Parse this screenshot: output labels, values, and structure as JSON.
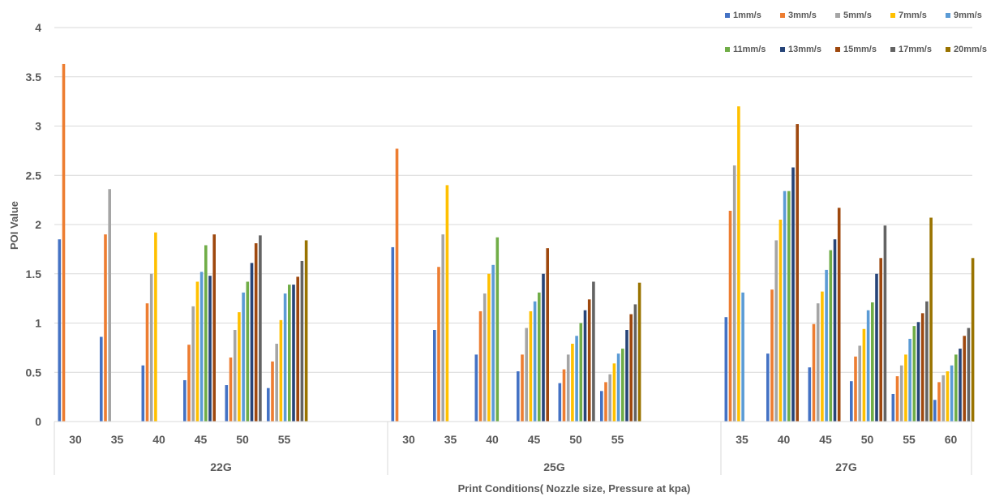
{
  "chart_data": {
    "type": "bar",
    "xlabel": "Print Conditions( Nozzle size, Pressure at kpa)",
    "ylabel": "POI Value",
    "ylim": [
      0,
      4
    ],
    "yticks": [
      "0",
      "0.5",
      "1",
      "1.5",
      "2",
      "2.5",
      "3",
      "3.5",
      "4"
    ],
    "grid": true,
    "legend_position": "top-right",
    "groups": [
      {
        "name": "22G",
        "categories": [
          "30",
          "35",
          "40",
          "45",
          "50",
          "55"
        ]
      },
      {
        "name": "25G",
        "categories": [
          "30",
          "35",
          "40",
          "45",
          "50",
          "55"
        ]
      },
      {
        "name": "27G",
        "categories": [
          "35",
          "40",
          "45",
          "50",
          "55",
          "60"
        ]
      }
    ],
    "series": [
      {
        "name": "1mm/s",
        "color": "#4472C4",
        "values": [
          1.85,
          0.86,
          0.57,
          0.42,
          0.37,
          0.34,
          1.77,
          0.93,
          0.68,
          0.51,
          0.39,
          0.31,
          1.06,
          0.69,
          0.55,
          0.41,
          0.28,
          0.22
        ]
      },
      {
        "name": "3mm/s",
        "color": "#ED7D31",
        "values": [
          3.63,
          1.9,
          1.2,
          0.78,
          0.65,
          0.61,
          2.77,
          1.57,
          1.12,
          0.68,
          0.53,
          0.4,
          2.14,
          1.34,
          0.99,
          0.66,
          0.46,
          0.4
        ]
      },
      {
        "name": "5mm/s",
        "color": "#A5A5A5",
        "values": [
          null,
          2.36,
          1.5,
          1.17,
          0.93,
          0.79,
          null,
          1.9,
          1.3,
          0.95,
          0.68,
          0.48,
          2.6,
          1.84,
          1.2,
          0.77,
          0.57,
          0.47
        ]
      },
      {
        "name": "7mm/s",
        "color": "#FFC000",
        "values": [
          null,
          null,
          1.92,
          1.42,
          1.11,
          1.03,
          null,
          2.4,
          1.5,
          1.12,
          0.79,
          0.59,
          3.2,
          2.05,
          1.32,
          0.94,
          0.68,
          0.51
        ]
      },
      {
        "name": "9mm/s",
        "color": "#5B9BD5",
        "values": [
          null,
          null,
          null,
          1.52,
          1.31,
          1.3,
          null,
          null,
          1.59,
          1.22,
          0.87,
          0.69,
          1.31,
          2.34,
          1.54,
          1.13,
          0.84,
          0.57
        ]
      },
      {
        "name": "11mm/s",
        "color": "#70AD47",
        "values": [
          null,
          null,
          null,
          1.79,
          1.42,
          1.39,
          null,
          null,
          1.87,
          1.31,
          1.0,
          0.74,
          null,
          2.34,
          1.74,
          1.21,
          0.97,
          0.68
        ]
      },
      {
        "name": "13mm/s",
        "color": "#264478",
        "values": [
          null,
          null,
          null,
          1.48,
          1.61,
          1.39,
          null,
          null,
          null,
          1.5,
          1.13,
          0.93,
          null,
          2.58,
          1.85,
          1.5,
          1.01,
          0.74
        ]
      },
      {
        "name": "15mm/s",
        "color": "#9E480E",
        "values": [
          null,
          null,
          null,
          1.9,
          1.81,
          1.47,
          null,
          null,
          null,
          1.76,
          1.24,
          1.09,
          null,
          3.02,
          2.17,
          1.66,
          1.1,
          0.87
        ]
      },
      {
        "name": "17mm/s",
        "color": "#636363",
        "values": [
          null,
          null,
          null,
          null,
          1.89,
          1.63,
          null,
          null,
          null,
          null,
          1.42,
          1.19,
          null,
          null,
          null,
          1.99,
          1.22,
          0.95
        ]
      },
      {
        "name": "20mm/s",
        "color": "#997300",
        "values": [
          null,
          null,
          null,
          null,
          null,
          1.84,
          null,
          null,
          null,
          null,
          null,
          1.41,
          null,
          null,
          null,
          null,
          2.07,
          1.66
        ]
      }
    ]
  }
}
